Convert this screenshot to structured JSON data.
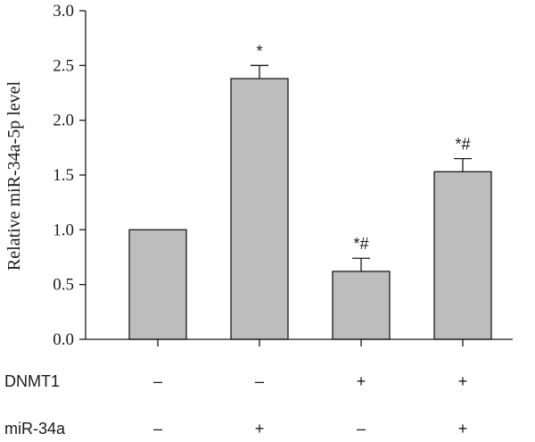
{
  "chart_data": {
    "type": "bar",
    "title": "",
    "xlabel": "",
    "ylabel": "Relative miR-34a-5p level",
    "ylim": [
      0,
      3.0
    ],
    "yticks": [
      0.0,
      0.5,
      1.0,
      1.5,
      2.0,
      2.5,
      3.0
    ],
    "ytick_labels": [
      "0.0",
      "0.5",
      "1.0",
      "1.5",
      "2.0",
      "2.5",
      "3.0"
    ],
    "values": [
      1.0,
      2.38,
      0.62,
      1.53
    ],
    "errors": [
      0.0,
      0.12,
      0.12,
      0.12
    ],
    "significance": [
      "",
      "*",
      "*#",
      "*#"
    ],
    "bar_color": "#bdbdbd",
    "bar_edge_color": "#1a1a1a",
    "grid": false,
    "legend": "none",
    "factors": [
      {
        "label": "DNMT1",
        "values": [
          "–",
          "–",
          "+",
          "+"
        ]
      },
      {
        "label": "miR-34a",
        "values": [
          "–",
          "+",
          "–",
          "+"
        ]
      }
    ]
  }
}
